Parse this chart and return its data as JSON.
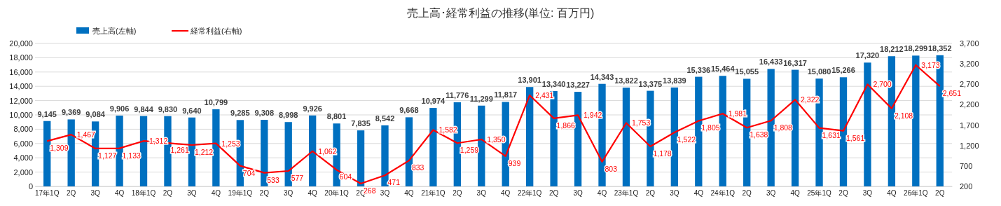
{
  "chart_data": {
    "type": "bar",
    "title": "売上高･経常利益の推移(単位: 百万円)",
    "categories": [
      "17年1Q",
      "2Q",
      "3Q",
      "4Q",
      "18年1Q",
      "2Q",
      "3Q",
      "4Q",
      "19年1Q",
      "2Q",
      "3Q",
      "4Q",
      "20年1Q",
      "2Q",
      "3Q",
      "4Q",
      "21年1Q",
      "2Q",
      "3Q",
      "4Q",
      "22年1Q",
      "2Q",
      "3Q",
      "4Q",
      "23年1Q",
      "2Q",
      "3Q",
      "4Q",
      "24年1Q",
      "2Q",
      "3Q",
      "4Q",
      "25年1Q",
      "2Q",
      "3Q",
      "4Q",
      "26年1Q",
      "2Q"
    ],
    "series": [
      {
        "name": "売上高(左軸)",
        "color": "#0070c0",
        "values": [
          9145,
          9369,
          9084,
          9906,
          9844,
          9830,
          9640,
          10799,
          9285,
          9308,
          8998,
          9926,
          8801,
          7835,
          8542,
          9668,
          10974,
          11776,
          11299,
          11817,
          13901,
          13340,
          13227,
          14343,
          13822,
          13375,
          13839,
          15336,
          15464,
          15055,
          16433,
          16317,
          15080,
          15266,
          17320,
          18212,
          18299,
          18352
        ],
        "value_labels": [
          "9,145",
          "9,369",
          "9,084",
          "9,906",
          "9,844",
          "9,830",
          "9,640",
          "10,799",
          "9,285",
          "9,308",
          "8,998",
          "9,926",
          "8,801",
          "7,835",
          "8,542",
          "9,668",
          "10,974",
          "11,776",
          "11,299",
          "11,817",
          "13,901",
          "13,340",
          "13,227",
          "14,343",
          "13,822",
          "13,375",
          "13,839",
          "15,336",
          "15,464",
          "15,055",
          "16,433",
          "16,317",
          "15,080",
          "15,266",
          "17,320",
          "18,212",
          "18,299",
          "18,352"
        ]
      },
      {
        "name": "経常利益(右軸)",
        "type": "line",
        "axis": "y2",
        "color": "#ff0000",
        "values": [
          1309,
          1467,
          1127,
          1133,
          1312,
          1261,
          1212,
          1253,
          704,
          533,
          577,
          1062,
          604,
          268,
          471,
          833,
          1582,
          1259,
          1350,
          939,
          2431,
          1866,
          1942,
          803,
          1753,
          1178,
          1522,
          1805,
          1981,
          1638,
          1808,
          2322,
          1631,
          1561,
          2700,
          2108,
          3173,
          2651
        ],
        "value_labels": [
          "1,309",
          "1,467",
          "1,127",
          "1,133",
          "1,312",
          "1,261",
          "1,212",
          "1,253",
          "704",
          "533",
          "577",
          "1,062",
          "604",
          "268",
          "471",
          "833",
          "1,582",
          "1,259",
          "1,350",
          "939",
          "2,431",
          "1,866",
          "1,942",
          "803",
          "1,753",
          "1,178",
          "1,522",
          "1,805",
          "1,981",
          "1,638",
          "1,808",
          "2,322",
          "1,631",
          "1,561",
          "2,700",
          "2,108",
          "3,173",
          "2,651"
        ]
      }
    ],
    "ylim": [
      0,
      20000
    ],
    "yticks": [
      0,
      {
        "value": 2000,
        "label": "2,000"
      },
      {
        "value": 4000,
        "label": "4,000"
      },
      {
        "value": 6000,
        "label": "6,000"
      },
      {
        "value": 8000,
        "label": "8,000"
      },
      {
        "value": 10000,
        "label": "10,000"
      },
      {
        "value": 12000,
        "label": "12,000"
      },
      {
        "value": 14000,
        "label": "14,000"
      },
      {
        "value": 16000,
        "label": "16,000"
      },
      {
        "value": 18000,
        "label": "18,000"
      },
      {
        "value": 20000,
        "label": "20,000"
      }
    ],
    "y2lim": [
      200,
      3700
    ],
    "y2ticks": [
      200,
      700,
      {
        "value": 1200,
        "label": "1,200"
      },
      {
        "value": 1700,
        "label": "1,700"
      },
      {
        "value": 2200,
        "label": "2,200"
      },
      {
        "value": 2700,
        "label": "2,700"
      },
      {
        "value": 3200,
        "label": "3,200"
      },
      {
        "value": 3700,
        "label": "3,700"
      }
    ],
    "grid": "y",
    "legend": "top left",
    "marker": "none",
    "line_style": "solid"
  }
}
